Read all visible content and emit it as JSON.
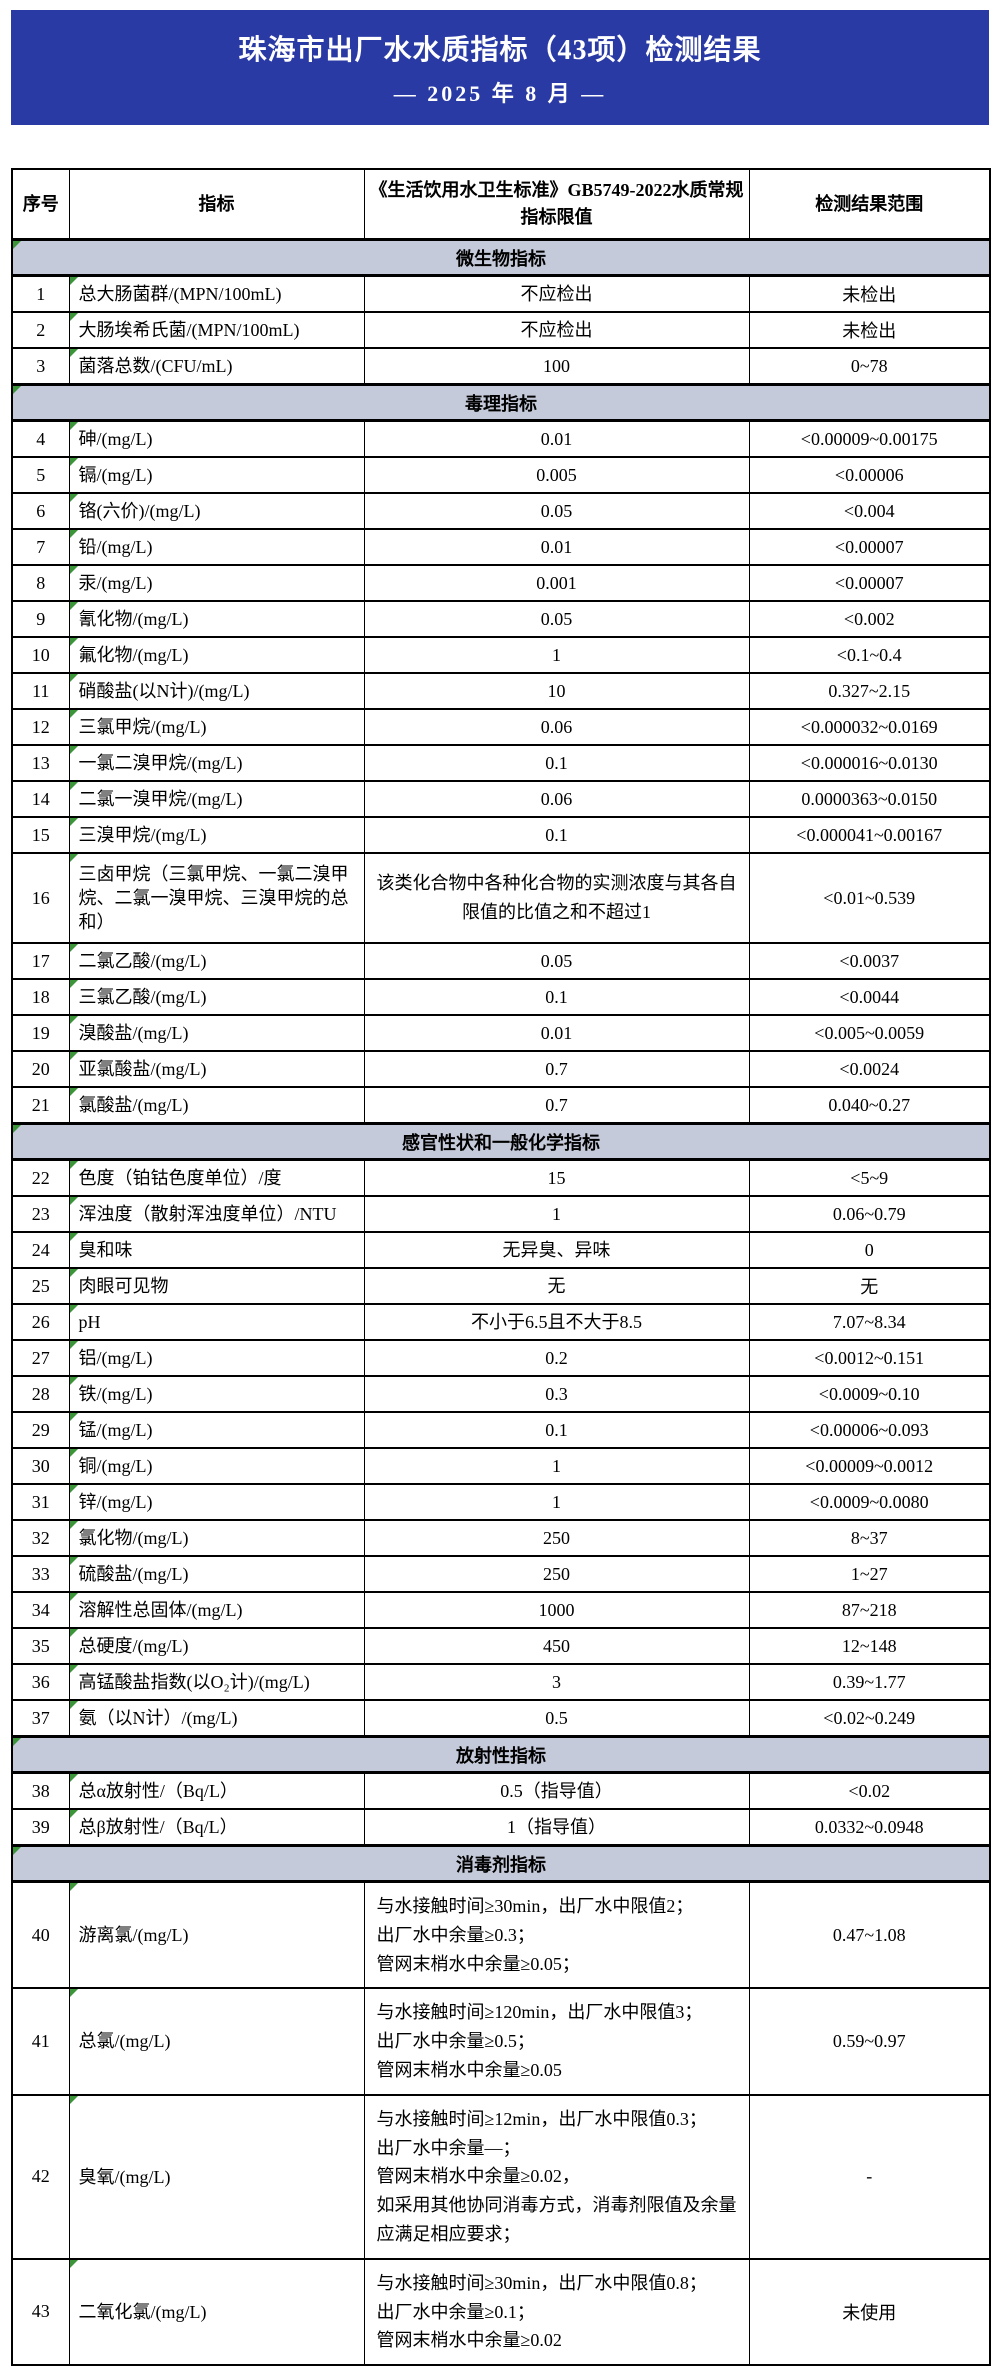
{
  "banner": {
    "title": "珠海市出厂水水质指标（43项）检测结果",
    "subtitle": "— 2025 年 8 月 —",
    "bg_color": "#2a3aa5",
    "text_color": "#ffffff"
  },
  "table": {
    "section_bg": "#c5cada",
    "comment_marker_color": "#3c9639",
    "headers": [
      "序号",
      "指标",
      "《生活饮用水卫生标准》GB5749-2022水质常规指标限值",
      "检测结果范围"
    ],
    "sections": [
      {
        "name": "微生物指标",
        "rows": [
          {
            "no": "1",
            "indicator": "总大肠菌群/(MPN/100mL)",
            "limit": "不应检出",
            "result": "未检出"
          },
          {
            "no": "2",
            "indicator": "大肠埃希氏菌/(MPN/100mL)",
            "limit": "不应检出",
            "result": "未检出"
          },
          {
            "no": "3",
            "indicator": "菌落总数/(CFU/mL)",
            "limit": "100",
            "result": "0~78"
          }
        ]
      },
      {
        "name": "毒理指标",
        "rows": [
          {
            "no": "4",
            "indicator": "砷/(mg/L)",
            "limit": "0.01",
            "result": "<0.00009~0.00175"
          },
          {
            "no": "5",
            "indicator": "镉/(mg/L)",
            "limit": "0.005",
            "result": "<0.00006"
          },
          {
            "no": "6",
            "indicator": "铬(六价)/(mg/L)",
            "limit": "0.05",
            "result": "<0.004"
          },
          {
            "no": "7",
            "indicator": "铅/(mg/L)",
            "limit": "0.01",
            "result": "<0.00007"
          },
          {
            "no": "8",
            "indicator": "汞/(mg/L)",
            "limit": "0.001",
            "result": "<0.00007"
          },
          {
            "no": "9",
            "indicator": "氰化物/(mg/L)",
            "limit": "0.05",
            "result": "<0.002"
          },
          {
            "no": "10",
            "indicator": "氟化物/(mg/L)",
            "limit": "1",
            "result": "<0.1~0.4"
          },
          {
            "no": "11",
            "indicator": "硝酸盐(以N计)/(mg/L)",
            "limit": "10",
            "result": "0.327~2.15"
          },
          {
            "no": "12",
            "indicator": "三氯甲烷/(mg/L)",
            "limit": "0.06",
            "result": "<0.000032~0.0169"
          },
          {
            "no": "13",
            "indicator": "一氯二溴甲烷/(mg/L)",
            "limit": "0.1",
            "result": "<0.000016~0.0130"
          },
          {
            "no": "14",
            "indicator": "二氯一溴甲烷/(mg/L)",
            "limit": "0.06",
            "result": "0.0000363~0.0150"
          },
          {
            "no": "15",
            "indicator": "三溴甲烷/(mg/L)",
            "limit": "0.1",
            "result": "<0.000041~0.00167"
          },
          {
            "no": "16",
            "indicator": "三卤甲烷（三氯甲烷、一氯二溴甲烷、二氯一溴甲烷、三溴甲烷的总和）",
            "limit": "该类化合物中各种化合物的实测浓度与其各自限值的比值之和不超过1",
            "result": "<0.01~0.539",
            "tall": true
          },
          {
            "no": "17",
            "indicator": "二氯乙酸/(mg/L)",
            "limit": "0.05",
            "result": "<0.0037"
          },
          {
            "no": "18",
            "indicator": "三氯乙酸/(mg/L)",
            "limit": "0.1",
            "result": "<0.0044"
          },
          {
            "no": "19",
            "indicator": "溴酸盐/(mg/L)",
            "limit": "0.01",
            "result": "<0.005~0.0059"
          },
          {
            "no": "20",
            "indicator": "亚氯酸盐/(mg/L)",
            "limit": "0.7",
            "result": "<0.0024"
          },
          {
            "no": "21",
            "indicator": "氯酸盐/(mg/L)",
            "limit": "0.7",
            "result": "0.040~0.27"
          }
        ]
      },
      {
        "name": "感官性状和一般化学指标",
        "rows": [
          {
            "no": "22",
            "indicator": "色度（铂钴色度单位）/度",
            "limit": "15",
            "result": "<5~9"
          },
          {
            "no": "23",
            "indicator": "浑浊度（散射浑浊度单位）/NTU",
            "limit": "1",
            "result": "0.06~0.79"
          },
          {
            "no": "24",
            "indicator": "臭和味",
            "limit": "无异臭、异味",
            "result": "0"
          },
          {
            "no": "25",
            "indicator": "肉眼可见物",
            "limit": "无",
            "result": "无"
          },
          {
            "no": "26",
            "indicator": "pH",
            "limit": "不小于6.5且不大于8.5",
            "result": "7.07~8.34"
          },
          {
            "no": "27",
            "indicator": "铝/(mg/L)",
            "limit": "0.2",
            "result": "<0.0012~0.151"
          },
          {
            "no": "28",
            "indicator": "铁/(mg/L)",
            "limit": "0.3",
            "result": "<0.0009~0.10"
          },
          {
            "no": "29",
            "indicator": "锰/(mg/L)",
            "limit": "0.1",
            "result": "<0.00006~0.093"
          },
          {
            "no": "30",
            "indicator": "铜/(mg/L)",
            "limit": "1",
            "result": "<0.00009~0.0012"
          },
          {
            "no": "31",
            "indicator": "锌/(mg/L)",
            "limit": "1",
            "result": "<0.0009~0.0080"
          },
          {
            "no": "32",
            "indicator": "氯化物/(mg/L)",
            "limit": "250",
            "result": "8~37"
          },
          {
            "no": "33",
            "indicator": "硫酸盐/(mg/L)",
            "limit": "250",
            "result": "1~27"
          },
          {
            "no": "34",
            "indicator": "溶解性总固体/(mg/L)",
            "limit": "1000",
            "result": "87~218"
          },
          {
            "no": "35",
            "indicator": "总硬度/(mg/L)",
            "limit": "450",
            "result": "12~148"
          },
          {
            "no": "36",
            "indicator": "高锰酸盐指数(以O₂计)/(mg/L)",
            "limit": "3",
            "result": "0.39~1.77"
          },
          {
            "no": "37",
            "indicator": "氨（以N计）/(mg/L)",
            "limit": "0.5",
            "result": "<0.02~0.249"
          }
        ]
      },
      {
        "name": "放射性指标",
        "rows": [
          {
            "no": "38",
            "indicator": "总α放射性/（Bq/L）",
            "limit": "0.5（指导值）",
            "result": "<0.02"
          },
          {
            "no": "39",
            "indicator": "总β放射性/（Bq/L）",
            "limit": "1（指导值）",
            "result": "0.0332~0.0948"
          }
        ]
      },
      {
        "name": "消毒剂指标",
        "rows": [
          {
            "no": "40",
            "indicator": "游离氯/(mg/L)",
            "limit": "与水接触时间≥30min，出厂水中限值2；\n出厂水中余量≥0.3；\n管网末梢水中余量≥0.05；",
            "result": "0.47~1.08",
            "limit_align": "left"
          },
          {
            "no": "41",
            "indicator": "总氯/(mg/L)",
            "limit": "与水接触时间≥120min，出厂水中限值3；\n出厂水中余量≥0.5；\n管网末梢水中余量≥0.05",
            "result": "0.59~0.97",
            "limit_align": "left"
          },
          {
            "no": "42",
            "indicator": "臭氧/(mg/L)",
            "limit": "与水接触时间≥12min，出厂水中限值0.3；\n出厂水中余量—；\n管网末梢水中余量≥0.02，\n如采用其他协同消毒方式，消毒剂限值及余量应满足相应要求；",
            "result": "-",
            "limit_align": "left"
          },
          {
            "no": "43",
            "indicator": "二氧化氯/(mg/L)",
            "limit": "与水接触时间≥30min，出厂水中限值0.8；\n出厂水中余量≥0.1；\n管网末梢水中余量≥0.02",
            "result": "未使用",
            "limit_align": "left"
          }
        ]
      }
    ]
  }
}
